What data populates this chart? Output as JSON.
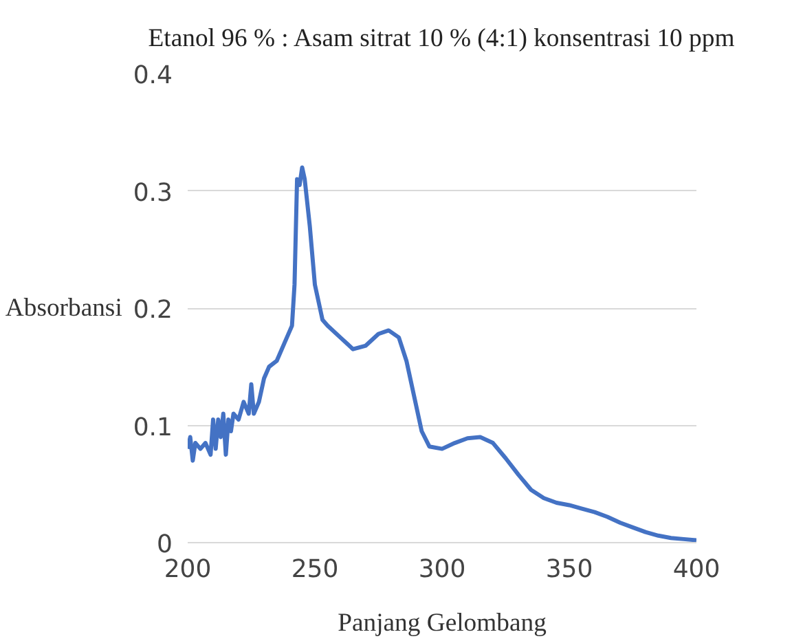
{
  "chart_data": {
    "type": "line",
    "title": "Etanol 96 % : Asam sitrat 10 % (4:1) konsentrasi 10 ppm",
    "xlabel": "Panjang Gelombang",
    "ylabel": "Absorbansi",
    "x": [
      200,
      201,
      202,
      203,
      205,
      207,
      209,
      210,
      211,
      212,
      213,
      214,
      215,
      216,
      217,
      218,
      220,
      222,
      224,
      225,
      226,
      228,
      230,
      232,
      235,
      238,
      241,
      242,
      243,
      244,
      245,
      246,
      248,
      250,
      251,
      253,
      255,
      260,
      265,
      270,
      275,
      279,
      283,
      286,
      289,
      292,
      295,
      300,
      305,
      310,
      315,
      320,
      325,
      330,
      335,
      340,
      345,
      350,
      355,
      360,
      365,
      370,
      375,
      380,
      385,
      390,
      395,
      400
    ],
    "series": [
      {
        "color": "#4472c4",
        "values": [
          0.08,
          0.09,
          0.07,
          0.085,
          0.08,
          0.085,
          0.075,
          0.105,
          0.08,
          0.105,
          0.09,
          0.11,
          0.075,
          0.105,
          0.095,
          0.11,
          0.105,
          0.12,
          0.11,
          0.135,
          0.11,
          0.12,
          0.14,
          0.15,
          0.155,
          0.17,
          0.185,
          0.22,
          0.31,
          0.305,
          0.32,
          0.31,
          0.27,
          0.22,
          0.21,
          0.19,
          0.185,
          0.175,
          0.165,
          0.168,
          0.178,
          0.181,
          0.175,
          0.155,
          0.125,
          0.095,
          0.082,
          0.08,
          0.085,
          0.089,
          0.09,
          0.085,
          0.072,
          0.058,
          0.045,
          0.038,
          0.034,
          0.032,
          0.029,
          0.026,
          0.022,
          0.017,
          0.013,
          0.009,
          0.006,
          0.004,
          0.003,
          0.002
        ]
      }
    ],
    "xlim": [
      200,
      400
    ],
    "xticks": [
      200,
      250,
      300,
      350,
      400
    ],
    "ylim": [
      0,
      0.4
    ],
    "yticks": [
      0,
      0.1,
      0.2,
      0.3,
      0.4
    ],
    "grid": "y"
  }
}
